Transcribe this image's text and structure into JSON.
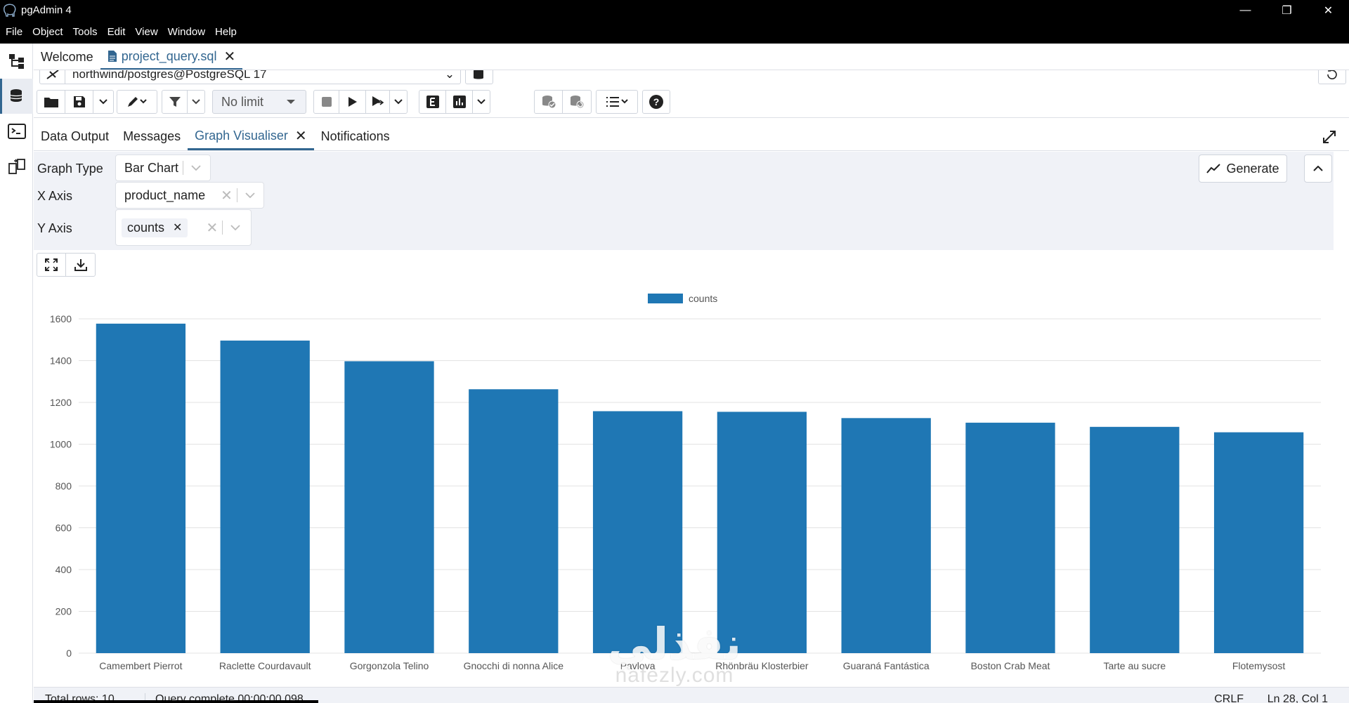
{
  "window": {
    "title": "pgAdmin 4"
  },
  "menu": [
    "File",
    "Object",
    "Tools",
    "Edit",
    "View",
    "Window",
    "Help"
  ],
  "tabs": {
    "welcome": "Welcome",
    "query": "project_query.sql"
  },
  "connection": {
    "label": "northwind/postgres@PostgreSQL 17"
  },
  "toolbar": {
    "limit": "No limit"
  },
  "result_tabs": {
    "data_output": "Data Output",
    "messages": "Messages",
    "graph": "Graph Visualiser",
    "notifications": "Notifications"
  },
  "graph_options": {
    "graph_type_label": "Graph Type",
    "graph_type_value": "Bar Chart",
    "x_axis_label": "X Axis",
    "x_axis_value": "product_name",
    "y_axis_label": "Y Axis",
    "y_axis_value": "counts",
    "generate_label": "Generate"
  },
  "chart_data": {
    "type": "bar",
    "categories": [
      "Camembert Pierrot",
      "Raclette Courdavault",
      "Gorgonzola Telino",
      "Gnocchi di nonna Alice",
      "Pavlova",
      "Rhönbräu Klosterbier",
      "Guaraná Fantástica",
      "Boston Crab Meat",
      "Tarte au sucre",
      "Flotemysost"
    ],
    "series": [
      {
        "name": "counts",
        "values": [
          1577,
          1496,
          1397,
          1263,
          1158,
          1155,
          1125,
          1103,
          1083,
          1057
        ]
      }
    ],
    "ylim": [
      0,
      1600
    ],
    "yticks": [
      0,
      200,
      400,
      600,
      800,
      1000,
      1200,
      1400,
      1600
    ],
    "grid": true,
    "legend": "top-center",
    "color": "#1f77b4"
  },
  "status": {
    "rows": "Total rows: 10",
    "query": "Query complete 00:00:00.098",
    "eol": "CRLF",
    "pos": "Ln 28, Col 1"
  },
  "watermark": {
    "arabic": "نفذلي",
    "latin": "nafezly.com"
  }
}
